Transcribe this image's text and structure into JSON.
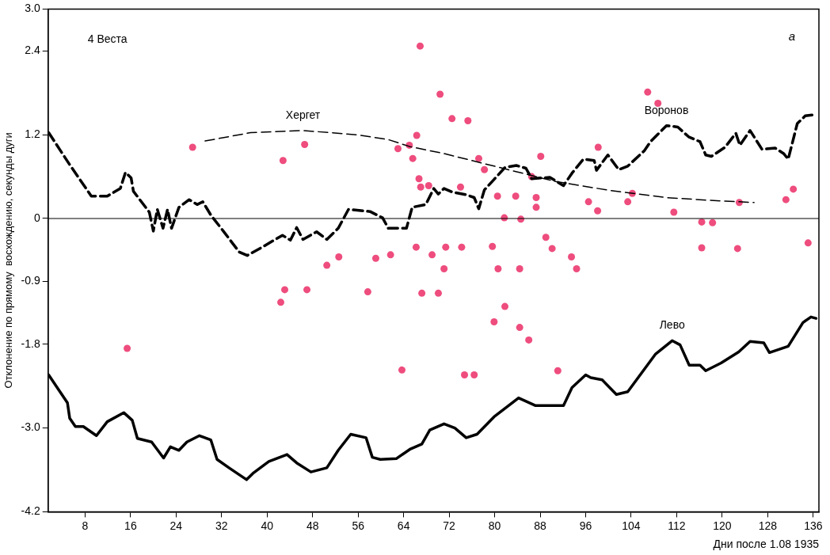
{
  "chart_data": {
    "type": "line",
    "xlabel": "Дни после 1.08 1935",
    "ylabel": "Отклонение по прямому  восхождению, секунды дуги",
    "annotations": [
      "4 Веста",
      "a"
    ],
    "xlim": [
      1.5,
      137
    ],
    "xticks": [
      8,
      16,
      24,
      32,
      40,
      48,
      56,
      64,
      72,
      80,
      88,
      96,
      104,
      112,
      120,
      128,
      136
    ],
    "ylim": [
      -4.2,
      3.0
    ],
    "yticks": [
      {
        "value": 3,
        "label": "3.0"
      },
      {
        "value": 2.4,
        "label": "2.4"
      },
      {
        "value": 1.2,
        "label": "1.2"
      },
      {
        "value": 0,
        "label": "0"
      },
      {
        "value": -0.9,
        "label": "-0.9"
      },
      {
        "value": -1.8,
        "label": "-1.8"
      },
      {
        "value": -3,
        "label": "-3.0"
      },
      {
        "value": -4.2,
        "label": "-4.2"
      }
    ],
    "grid": false,
    "legend": false,
    "ref_lines": [
      {
        "axis": "y",
        "value": 0,
        "color": "#000000",
        "line_style": "solid"
      }
    ],
    "series": [
      {
        "name": "Хергет",
        "color": "#000000",
        "line_style": "dashed",
        "marker": "none",
        "x": [
          29.1,
          37.1,
          46.3,
          55.7,
          61.3,
          65.1,
          71.1,
          80.9,
          90.7,
          100.4,
          110.2,
          120.0,
          125.6
        ],
        "values": [
          1.11,
          1.23,
          1.26,
          1.2,
          1.13,
          1.03,
          0.93,
          0.73,
          0.53,
          0.4,
          0.3,
          0.25,
          0.23
        ]
      },
      {
        "name": "Воронов",
        "color": "#000000",
        "line_style": "dashed",
        "marker": "none",
        "x": [
          1.6,
          5.3,
          9.1,
          11.9,
          14.2,
          15.1,
          16.1,
          16.5,
          19.3,
          20.0,
          20.7,
          21.7,
          22.5,
          23.2,
          24.5,
          26.3,
          27.7,
          28.7,
          30.1,
          32.3,
          35.1,
          36.5,
          38.5,
          42.7,
          44.1,
          45.2,
          46.3,
          48.7,
          50.5,
          52.5,
          54.3,
          58.1,
          60.3,
          61.3,
          64.5,
          65.5,
          67.9,
          69.3,
          70.1,
          71.1,
          72.5,
          75.0,
          76.4,
          77.2,
          78.2,
          79.9,
          81.8,
          83.8,
          85.5,
          86.5,
          89.7,
          92.1,
          93.6,
          95.6,
          97.5,
          97.9,
          99.9,
          101.8,
          103.4,
          106.3,
          107.4,
          110.2,
          112.2,
          114.1,
          116.1,
          117.1,
          118.1,
          120.5,
          122.4,
          123.1,
          124.9,
          127.0,
          129.3,
          130.8,
          131.6,
          133.2,
          134.6,
          136.5
        ],
        "values": [
          1.23,
          0.77,
          0.32,
          0.32,
          0.43,
          0.66,
          0.58,
          0.39,
          0.09,
          -0.18,
          0.13,
          -0.14,
          0.13,
          -0.14,
          0.16,
          0.27,
          0.2,
          0.24,
          0.05,
          -0.18,
          -0.48,
          -0.53,
          -0.44,
          -0.24,
          -0.31,
          -0.13,
          -0.3,
          -0.19,
          -0.3,
          -0.14,
          0.13,
          0.1,
          0.01,
          -0.14,
          -0.14,
          0.16,
          0.2,
          0.43,
          0.35,
          0.43,
          0.38,
          0.34,
          0.3,
          0.14,
          0.41,
          0.56,
          0.73,
          0.76,
          0.72,
          0.57,
          0.59,
          0.47,
          0.65,
          0.85,
          0.83,
          0.69,
          0.91,
          0.7,
          0.75,
          0.97,
          1.1,
          1.33,
          1.31,
          1.17,
          1.1,
          0.91,
          0.89,
          1.02,
          1.22,
          1.05,
          1.26,
          0.99,
          1.01,
          0.93,
          0.85,
          1.36,
          1.47,
          1.49
        ]
      },
      {
        "name": "Лево",
        "color": "#000000",
        "line_style": "solid",
        "marker": "none",
        "x": [
          1.6,
          3.0,
          4.9,
          5.3,
          6.3,
          7.7,
          10.0,
          11.9,
          14.8,
          16.3,
          17.2,
          19.7,
          21.8,
          23.0,
          24.5,
          25.9,
          28.1,
          30.1,
          31.2,
          33.3,
          36.4,
          37.5,
          40.3,
          43.5,
          45.2,
          47.7,
          50.5,
          52.5,
          54.7,
          57.4,
          58.5,
          59.9,
          62.7,
          65.2,
          67.2,
          68.6,
          71.1,
          73.0,
          75.0,
          76.9,
          79.9,
          84.2,
          87.2,
          92.1,
          93.6,
          96.0,
          96.9,
          98.9,
          101.4,
          103.4,
          108.3,
          111.2,
          112.6,
          114.2,
          116.1,
          117.1,
          119.8,
          122.9,
          124.9,
          127.3,
          128.3,
          131.6,
          134.2,
          135.6,
          136.5
        ],
        "values": [
          -2.24,
          -2.41,
          -2.64,
          -2.86,
          -2.98,
          -2.98,
          -3.11,
          -2.91,
          -2.78,
          -2.89,
          -3.15,
          -3.2,
          -3.43,
          -3.27,
          -3.32,
          -3.2,
          -3.11,
          -3.17,
          -3.45,
          -3.57,
          -3.74,
          -3.65,
          -3.48,
          -3.38,
          -3.5,
          -3.63,
          -3.57,
          -3.32,
          -3.09,
          -3.14,
          -3.42,
          -3.45,
          -3.44,
          -3.3,
          -3.23,
          -3.03,
          -2.94,
          -3.0,
          -3.14,
          -3.09,
          -2.84,
          -2.57,
          -2.68,
          -2.68,
          -2.42,
          -2.24,
          -2.28,
          -2.31,
          -2.52,
          -2.48,
          -1.94,
          -1.75,
          -1.81,
          -2.1,
          -2.1,
          -2.18,
          -2.07,
          -1.91,
          -1.76,
          -1.78,
          -1.92,
          -1.83,
          -1.49,
          -1.41,
          -1.43
        ]
      },
      {
        "type": "scatter",
        "color": "#ee4d7e",
        "marker": "circle",
        "x": [
          15.4,
          26.9,
          42.4,
          42.8,
          43.1,
          46.6,
          47.0,
          50.5,
          52.6,
          57.7,
          59.1,
          61.7,
          63.0,
          63.7,
          65.0,
          65.6,
          66.2,
          66.3,
          66.7,
          66.9,
          67.0,
          67.2,
          68.4,
          69.0,
          70.1,
          70.4,
          71.1,
          71.4,
          72.5,
          74.0,
          74.2,
          74.7,
          75.3,
          76.4,
          77.2,
          78.2,
          79.6,
          79.9,
          80.5,
          80.6,
          81.7,
          81.8,
          83.7,
          84.4,
          84.4,
          84.6,
          86.0,
          86.5,
          87.3,
          87.3,
          88.1,
          89.0,
          90.1,
          91.1,
          93.5,
          94.4,
          96.5,
          98.1,
          98.2,
          103.4,
          104.2,
          106.9,
          108.7,
          111.5,
          116.4,
          116.4,
          118.3,
          122.7,
          123.0,
          131.2,
          132.5,
          135.1
        ],
        "values": [
          -1.86,
          1.02,
          -1.2,
          0.83,
          -1.02,
          1.06,
          -1.02,
          -0.67,
          -0.55,
          -1.05,
          -0.57,
          -0.52,
          1.0,
          -2.17,
          1.05,
          0.86,
          -0.41,
          1.19,
          0.57,
          2.47,
          0.45,
          -1.07,
          0.47,
          -0.52,
          -1.07,
          1.78,
          -0.72,
          -0.41,
          1.43,
          0.45,
          -0.41,
          -2.24,
          1.4,
          -2.24,
          0.86,
          0.7,
          -0.4,
          -1.48,
          0.32,
          -0.72,
          0.01,
          -1.26,
          0.32,
          -0.72,
          -1.56,
          -0.01,
          -1.74,
          0.6,
          0.3,
          0.16,
          0.89,
          -0.27,
          -0.43,
          -2.18,
          -0.55,
          -0.72,
          0.24,
          0.11,
          1.02,
          0.24,
          0.36,
          1.81,
          1.65,
          0.09,
          -0.05,
          -0.42,
          -0.06,
          -0.43,
          0.23,
          0.27,
          0.42,
          -0.35
        ]
      }
    ]
  }
}
